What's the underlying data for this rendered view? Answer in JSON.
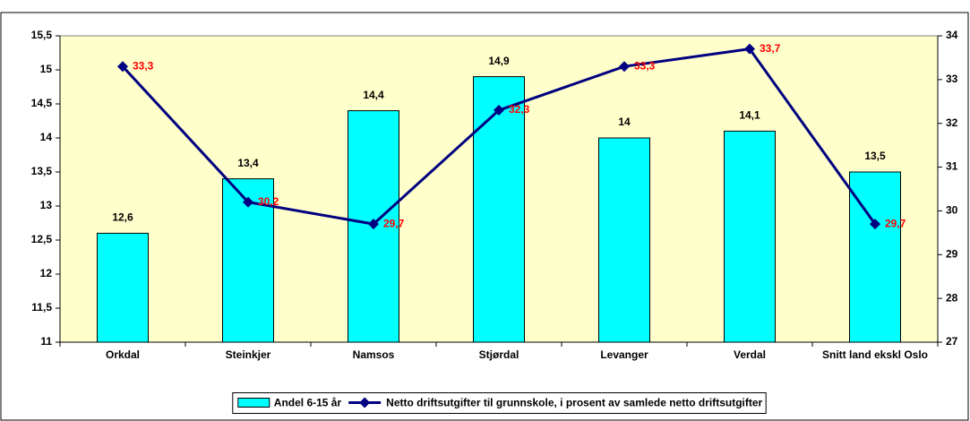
{
  "chart_data": {
    "type": "bar_line",
    "categories": [
      "Orkdal",
      "Steinkjer",
      "Namsos",
      "Stjørdal",
      "Levanger",
      "Verdal",
      "Snitt land ekskl Oslo"
    ],
    "series": [
      {
        "name": "Andel 6-15 år",
        "type": "bar",
        "color": "#00ffff",
        "axis": "y",
        "values": [
          12.6,
          13.4,
          14.4,
          14.9,
          14,
          14.1,
          13.5
        ],
        "value_labels": [
          "12,6",
          "13,4",
          "14,4",
          "14,9",
          "14",
          "14,1",
          "13,5"
        ]
      },
      {
        "name": "Netto driftsutgifter til grunnskole, i prosent av samlede netto driftsutgifter",
        "type": "line",
        "color": "#000080",
        "label_color": "#ff0000",
        "axis": "y2",
        "values": [
          33.3,
          30.2,
          29.7,
          32.3,
          33.3,
          33.7,
          29.7
        ],
        "value_labels": [
          "33,3",
          "30,2",
          "29,7",
          "32,3",
          "33,3",
          "33,7",
          "29,7"
        ]
      }
    ],
    "ylim": [
      11,
      15.5
    ],
    "yticks": [
      11,
      {
        "value": 11.5,
        "label": "11,5"
      },
      12,
      {
        "value": 12.5,
        "label": "12,5"
      },
      13,
      {
        "value": 13.5,
        "label": "13,5"
      },
      14,
      {
        "value": 14.5,
        "label": "14,5"
      },
      15,
      {
        "value": 15.5,
        "label": "15,5"
      }
    ],
    "y2lim": [
      27,
      34
    ],
    "y2ticks": [
      27,
      28,
      29,
      30,
      31,
      32,
      33,
      34
    ],
    "plot_background": "#ffffcc",
    "grid": false,
    "legend": "bottom"
  }
}
